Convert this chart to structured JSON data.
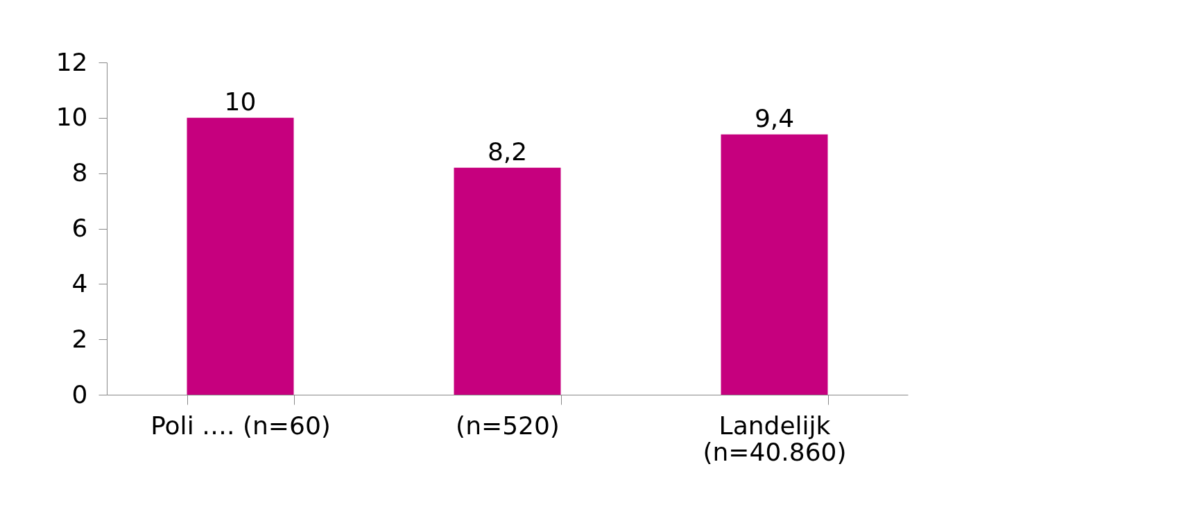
{
  "chart_data": {
    "type": "bar",
    "categories": [
      "Poli …. (n=60)",
      "(n=520)",
      "Landelijk (n=40.860)"
    ],
    "values": [
      10,
      8.2,
      9.4
    ],
    "value_labels": [
      "10",
      "8,2",
      "9,4"
    ],
    "color": "#c6007e",
    "ylim": [
      0,
      12
    ],
    "yticks": [
      0,
      2,
      4,
      6,
      8,
      10,
      12
    ],
    "grid": false
  }
}
